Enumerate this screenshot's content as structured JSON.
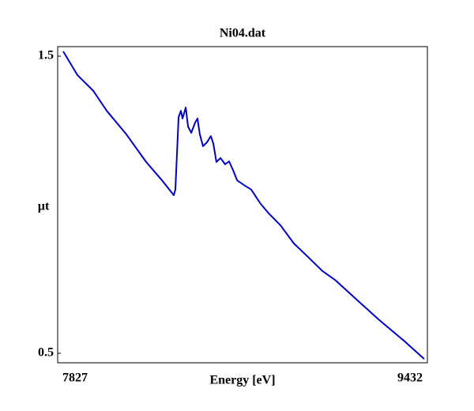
{
  "chart_data": {
    "type": "line",
    "title": "Ni04.dat",
    "x_label": "Energy [eV]",
    "y_label": "µt",
    "x": [
      7851,
      7913,
      7982,
      8040,
      8125,
      8211,
      8280,
      8331,
      8338,
      8352,
      8362,
      8369,
      8383,
      8393,
      8407,
      8424,
      8434,
      8444,
      8458,
      8475,
      8492,
      8503,
      8516,
      8534,
      8554,
      8571,
      8588,
      8606,
      8640,
      8667,
      8708,
      8743,
      8794,
      8852,
      8914,
      8976,
      9034,
      9120,
      9223,
      9326,
      9418
    ],
    "series": [
      {
        "name": "Ni04.dat",
        "color": "#0000cc",
        "values": [
          1.516,
          1.436,
          1.383,
          1.316,
          1.237,
          1.144,
          1.082,
          1.032,
          1.051,
          1.295,
          1.316,
          1.29,
          1.327,
          1.263,
          1.242,
          1.277,
          1.29,
          1.237,
          1.197,
          1.21,
          1.231,
          1.205,
          1.144,
          1.157,
          1.136,
          1.146,
          1.117,
          1.082,
          1.064,
          1.051,
          1.003,
          0.971,
          0.931,
          0.87,
          0.824,
          0.777,
          0.745,
          0.684,
          0.612,
          0.545,
          0.481
        ]
      }
    ],
    "xlim": [
      7827,
      9432
    ],
    "xticks": [
      7827,
      9432
    ],
    "ylim": [
      0.468,
      1.532
    ],
    "yticks": [
      0.5,
      1.5
    ]
  }
}
